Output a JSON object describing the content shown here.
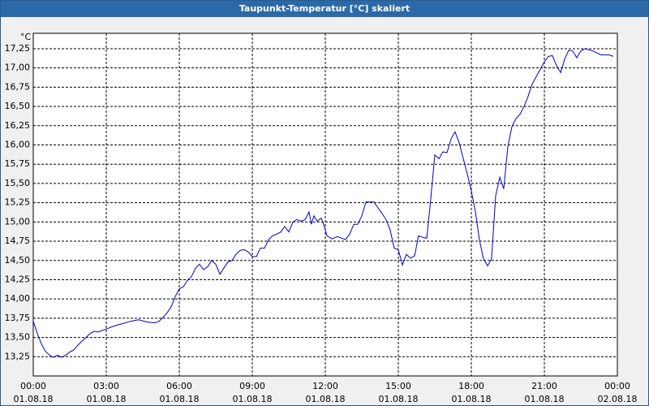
{
  "window_title": "Taupunkt-Temperatur [°C] skaliert",
  "chart_data": {
    "type": "line",
    "y_unit": "°C",
    "color": "#0000c8",
    "grid": true,
    "x": [
      0,
      0.17,
      0.33,
      0.5,
      0.67,
      0.83,
      1,
      1.17,
      1.33,
      1.5,
      1.67,
      1.83,
      2,
      2.17,
      2.33,
      2.5,
      2.67,
      2.83,
      3,
      3.33,
      3.67,
      4,
      4.33,
      4.67,
      5,
      5.17,
      5.33,
      5.5,
      5.67,
      5.83,
      6,
      6.17,
      6.33,
      6.5,
      6.67,
      6.83,
      7,
      7.17,
      7.33,
      7.5,
      7.67,
      7.83,
      8,
      8.17,
      8.33,
      8.5,
      8.67,
      8.83,
      9,
      9.17,
      9.33,
      9.5,
      9.67,
      9.83,
      10,
      10.17,
      10.33,
      10.5,
      10.67,
      10.83,
      11,
      11.17,
      11.33,
      11.43,
      11.53,
      11.67,
      11.83,
      11.93,
      12.07,
      12.27,
      12.5,
      12.67,
      12.83,
      13,
      13.17,
      13.33,
      13.5,
      13.67,
      13.83,
      14,
      14.17,
      14.33,
      14.5,
      14.67,
      14.83,
      15,
      15.17,
      15.33,
      15.5,
      15.67,
      15.83,
      16,
      16.17,
      16.33,
      16.5,
      16.67,
      16.83,
      17,
      17.17,
      17.33,
      17.5,
      17.67,
      17.83,
      18,
      18.17,
      18.33,
      18.5,
      18.67,
      18.83,
      19,
      19.17,
      19.33,
      19.5,
      19.67,
      19.83,
      20,
      20.17,
      20.33,
      20.5,
      20.67,
      20.83,
      21,
      21.17,
      21.33,
      21.5,
      21.67,
      21.83,
      22,
      22.17,
      22.33,
      22.5,
      22.67,
      23,
      23.33,
      23.67,
      23.83
    ],
    "values": [
      13.71,
      13.55,
      13.42,
      13.32,
      13.27,
      13.24,
      13.27,
      13.24,
      13.27,
      13.31,
      13.34,
      13.4,
      13.45,
      13.5,
      13.55,
      13.58,
      13.57,
      13.59,
      13.61,
      13.65,
      13.68,
      13.71,
      13.73,
      13.7,
      13.69,
      13.71,
      13.76,
      13.82,
      13.9,
      14.03,
      14.13,
      14.16,
      14.24,
      14.29,
      14.4,
      14.45,
      14.38,
      14.42,
      14.5,
      14.45,
      14.32,
      14.4,
      14.48,
      14.5,
      14.58,
      14.63,
      14.64,
      14.61,
      14.55,
      14.55,
      14.66,
      14.66,
      14.77,
      14.82,
      14.84,
      14.87,
      14.94,
      14.87,
      15.0,
      15.03,
      15.01,
      15.03,
      15.13,
      14.97,
      15.08,
      15.01,
      15.05,
      14.97,
      14.82,
      14.78,
      14.81,
      14.79,
      14.77,
      14.84,
      14.97,
      14.97,
      15.08,
      15.26,
      15.26,
      15.26,
      15.18,
      15.11,
      15.03,
      14.89,
      14.66,
      14.64,
      14.44,
      14.58,
      14.53,
      14.56,
      14.82,
      14.8,
      14.79,
      15.29,
      15.87,
      15.82,
      15.91,
      15.9,
      16.08,
      16.17,
      16.03,
      15.82,
      15.63,
      15.4,
      15.13,
      14.77,
      14.52,
      14.43,
      14.52,
      15.34,
      15.58,
      15.43,
      15.98,
      16.24,
      16.34,
      16.4,
      16.5,
      16.63,
      16.79,
      16.89,
      16.98,
      17.08,
      17.15,
      17.16,
      17.03,
      16.94,
      17.11,
      17.23,
      17.22,
      17.13,
      17.22,
      17.25,
      17.22,
      17.17,
      17.17,
      17.15
    ],
    "xlim": [
      0,
      24
    ],
    "xticks": [
      {
        "value": 0,
        "label": "00:00",
        "date": "01.08.18"
      },
      {
        "value": 3,
        "label": "03:00",
        "date": "01.08.18"
      },
      {
        "value": 6,
        "label": "06:00",
        "date": "01.08.18"
      },
      {
        "value": 9,
        "label": "09:00",
        "date": "01.08.18"
      },
      {
        "value": 12,
        "label": "12:00",
        "date": "01.08.18"
      },
      {
        "value": 15,
        "label": "15:00",
        "date": "01.08.18"
      },
      {
        "value": 18,
        "label": "18:00",
        "date": "01.08.18"
      },
      {
        "value": 21,
        "label": "21:00",
        "date": "01.08.18"
      },
      {
        "value": 24,
        "label": "00:00",
        "date": "02.08.18"
      }
    ],
    "ylim": [
      13.0,
      17.45
    ],
    "yticks": [
      {
        "value": 13.25,
        "label": "13,25"
      },
      {
        "value": 13.5,
        "label": "13,50"
      },
      {
        "value": 13.75,
        "label": "13,75"
      },
      {
        "value": 14,
        "label": "14,00"
      },
      {
        "value": 14.25,
        "label": "14,25"
      },
      {
        "value": 14.5,
        "label": "14,50"
      },
      {
        "value": 14.75,
        "label": "14,75"
      },
      {
        "value": 15,
        "label": "15,00"
      },
      {
        "value": 15.25,
        "label": "15,25"
      },
      {
        "value": 15.5,
        "label": "15,50"
      },
      {
        "value": 15.75,
        "label": "15,75"
      },
      {
        "value": 16,
        "label": "16,00"
      },
      {
        "value": 16.25,
        "label": "16,25"
      },
      {
        "value": 16.5,
        "label": "16,50"
      },
      {
        "value": 16.75,
        "label": "16,75"
      },
      {
        "value": 17,
        "label": "17,00"
      },
      {
        "value": 17.25,
        "label": "17,25"
      }
    ]
  }
}
